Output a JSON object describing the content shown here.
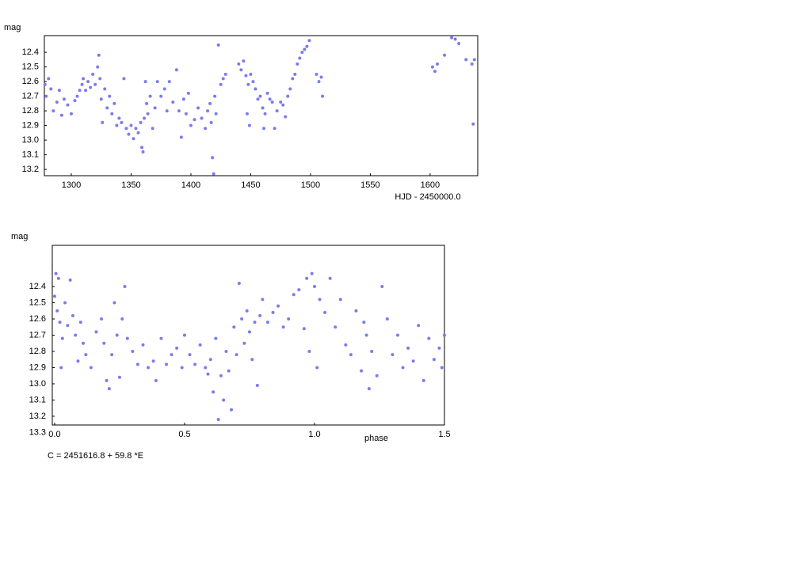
{
  "chart_data": [
    {
      "type": "scatter",
      "y_label": "mag",
      "x_label": "HJD - 2450000.0",
      "color": "#7b7bef",
      "x": [
        1278,
        1279,
        1281,
        1283,
        1285,
        1288,
        1290,
        1292,
        1294,
        1297,
        1300,
        1303,
        1305,
        1307,
        1309,
        1310,
        1312,
        1314,
        1316,
        1318,
        1320,
        1322,
        1323,
        1324,
        1325,
        1326,
        1328,
        1330,
        1332,
        1334,
        1336,
        1338,
        1340,
        1342,
        1344,
        1346,
        1348,
        1350,
        1352,
        1354,
        1356,
        1358,
        1359,
        1360,
        1361,
        1362,
        1363,
        1364,
        1366,
        1368,
        1370,
        1372,
        1375,
        1378,
        1380,
        1382,
        1385,
        1388,
        1390,
        1392,
        1394,
        1396,
        1398,
        1400,
        1403,
        1406,
        1409,
        1412,
        1414,
        1416,
        1417,
        1418,
        1419,
        1420,
        1421,
        1423,
        1425,
        1427,
        1429,
        1440,
        1442,
        1444,
        1446,
        1447,
        1448,
        1449,
        1450,
        1452,
        1454,
        1456,
        1458,
        1460,
        1461,
        1462,
        1464,
        1466,
        1468,
        1470,
        1472,
        1475,
        1477,
        1479,
        1481,
        1483,
        1485,
        1487,
        1489,
        1491,
        1493,
        1495,
        1497,
        1499,
        1505,
        1507,
        1509,
        1510,
        1602,
        1604,
        1606,
        1612,
        1618,
        1621,
        1624,
        1630,
        1635,
        1636,
        1637
      ],
      "values": [
        12.62,
        12.7,
        12.58,
        12.65,
        12.8,
        12.74,
        12.66,
        12.83,
        12.72,
        12.76,
        12.82,
        12.73,
        12.7,
        12.66,
        12.62,
        12.58,
        12.66,
        12.6,
        12.64,
        12.55,
        12.62,
        12.5,
        12.42,
        12.58,
        12.72,
        12.88,
        12.65,
        12.78,
        12.7,
        12.82,
        12.75,
        12.9,
        12.85,
        12.88,
        12.58,
        12.92,
        12.96,
        12.9,
        12.99,
        12.92,
        12.95,
        12.88,
        13.05,
        13.08,
        12.85,
        12.6,
        12.75,
        12.82,
        12.7,
        12.92,
        12.78,
        12.6,
        12.7,
        12.65,
        12.8,
        12.6,
        12.74,
        12.52,
        12.8,
        12.98,
        12.72,
        12.82,
        12.68,
        12.9,
        12.86,
        12.78,
        12.85,
        12.92,
        12.8,
        12.75,
        12.88,
        13.12,
        13.23,
        12.7,
        12.82,
        12.35,
        12.62,
        12.58,
        12.55,
        12.48,
        12.52,
        12.46,
        12.56,
        12.82,
        12.62,
        12.9,
        12.55,
        12.6,
        12.65,
        12.72,
        12.7,
        12.78,
        12.92,
        12.82,
        12.68,
        12.72,
        12.74,
        12.92,
        12.8,
        12.74,
        12.76,
        12.84,
        12.7,
        12.65,
        12.58,
        12.55,
        12.48,
        12.44,
        12.4,
        12.38,
        12.36,
        12.32,
        12.55,
        12.6,
        12.57,
        12.7,
        12.5,
        12.53,
        12.48,
        12.42,
        12.3,
        12.31,
        12.34,
        12.45,
        12.48,
        12.89,
        12.45
      ],
      "xlim": [
        1277.5,
        1639.8
      ],
      "ylim": [
        13.243,
        12.286
      ],
      "xticks": [
        1300,
        1350,
        1400,
        1450,
        1500,
        1550,
        1600
      ],
      "yticks": [
        12.4,
        12.5,
        12.6,
        12.7,
        12.8,
        12.9,
        {
          "value": 13,
          "label": "13.0"
        },
        13.1,
        13.2
      ]
    },
    {
      "type": "scatter",
      "y_label": "mag",
      "x_label": "phase",
      "color": "#7b7bef",
      "annotation": "C = 2451616.8 + 59.8 *E",
      "x": [
        0,
        0.005,
        0.01,
        0.015,
        0.02,
        0.025,
        0.03,
        0.04,
        0.05,
        0.06,
        0.07,
        0.08,
        0.09,
        0.1,
        0.11,
        0.12,
        0.14,
        0.16,
        0.18,
        0.19,
        0.2,
        0.21,
        0.22,
        0.23,
        0.24,
        0.25,
        0.26,
        0.27,
        0.28,
        0.3,
        0.32,
        0.34,
        0.36,
        0.38,
        0.39,
        0.41,
        0.43,
        0.45,
        0.47,
        0.49,
        0.5,
        0.52,
        0.54,
        0.56,
        0.58,
        0.59,
        0.6,
        0.61,
        0.62,
        0.63,
        0.64,
        0.65,
        0.66,
        0.67,
        0.68,
        0.69,
        0.7,
        0.71,
        0.72,
        0.73,
        0.74,
        0.75,
        0.76,
        0.77,
        0.78,
        0.79,
        0.8,
        0.82,
        0.84,
        0.86,
        0.88,
        0.9,
        0.92,
        0.94,
        0.96,
        0.97,
        0.98,
        0.99,
        1,
        1.01,
        1.02,
        1.04,
        1.06,
        1.08,
        1.1,
        1.12,
        1.14,
        1.16,
        1.18,
        1.19,
        1.2,
        1.21,
        1.22,
        1.24,
        1.26,
        1.28,
        1.3,
        1.32,
        1.34,
        1.36,
        1.38,
        1.4,
        1.42,
        1.44,
        1.46,
        1.48,
        1.49,
        1.5
      ],
      "values": [
        12.46,
        12.32,
        12.55,
        12.35,
        12.62,
        12.9,
        12.72,
        12.5,
        12.64,
        12.36,
        12.58,
        12.7,
        12.86,
        12.62,
        12.75,
        12.82,
        12.9,
        12.68,
        12.6,
        12.75,
        12.98,
        13.03,
        12.82,
        12.5,
        12.7,
        12.96,
        12.6,
        12.4,
        12.72,
        12.8,
        12.88,
        12.76,
        12.9,
        12.86,
        12.98,
        12.72,
        12.88,
        12.82,
        12.78,
        12.9,
        12.7,
        12.82,
        12.88,
        12.76,
        12.9,
        12.94,
        12.85,
        13.05,
        12.72,
        13.22,
        12.95,
        13.1,
        12.8,
        12.92,
        13.16,
        12.65,
        12.82,
        12.38,
        12.6,
        12.75,
        12.55,
        12.68,
        12.85,
        12.62,
        13.01,
        12.58,
        12.48,
        12.62,
        12.56,
        12.52,
        12.65,
        12.6,
        12.45,
        12.42,
        12.66,
        12.35,
        12.8,
        12.32,
        12.4,
        12.9,
        12.48,
        12.56,
        12.35,
        12.65,
        12.48,
        12.76,
        12.82,
        12.55,
        12.92,
        12.62,
        12.7,
        13.03,
        12.8,
        12.95,
        12.4,
        12.6,
        12.82,
        12.7,
        12.9,
        12.78,
        12.86,
        12.64,
        12.98,
        12.72,
        12.85,
        12.78,
        12.9,
        12.7
      ],
      "xlim": [
        -0.009,
        1.5
      ],
      "ylim": [
        13.254,
        12.146
      ],
      "xticks": [
        {
          "value": 0,
          "label": "0.0"
        },
        0.5,
        {
          "value": 1,
          "label": "1.0"
        },
        1.5
      ],
      "yticks": [
        12.4,
        12.5,
        12.6,
        12.7,
        12.8,
        12.9,
        {
          "value": 13,
          "label": "13.0"
        },
        13.1,
        13.2,
        13.3
      ]
    }
  ]
}
